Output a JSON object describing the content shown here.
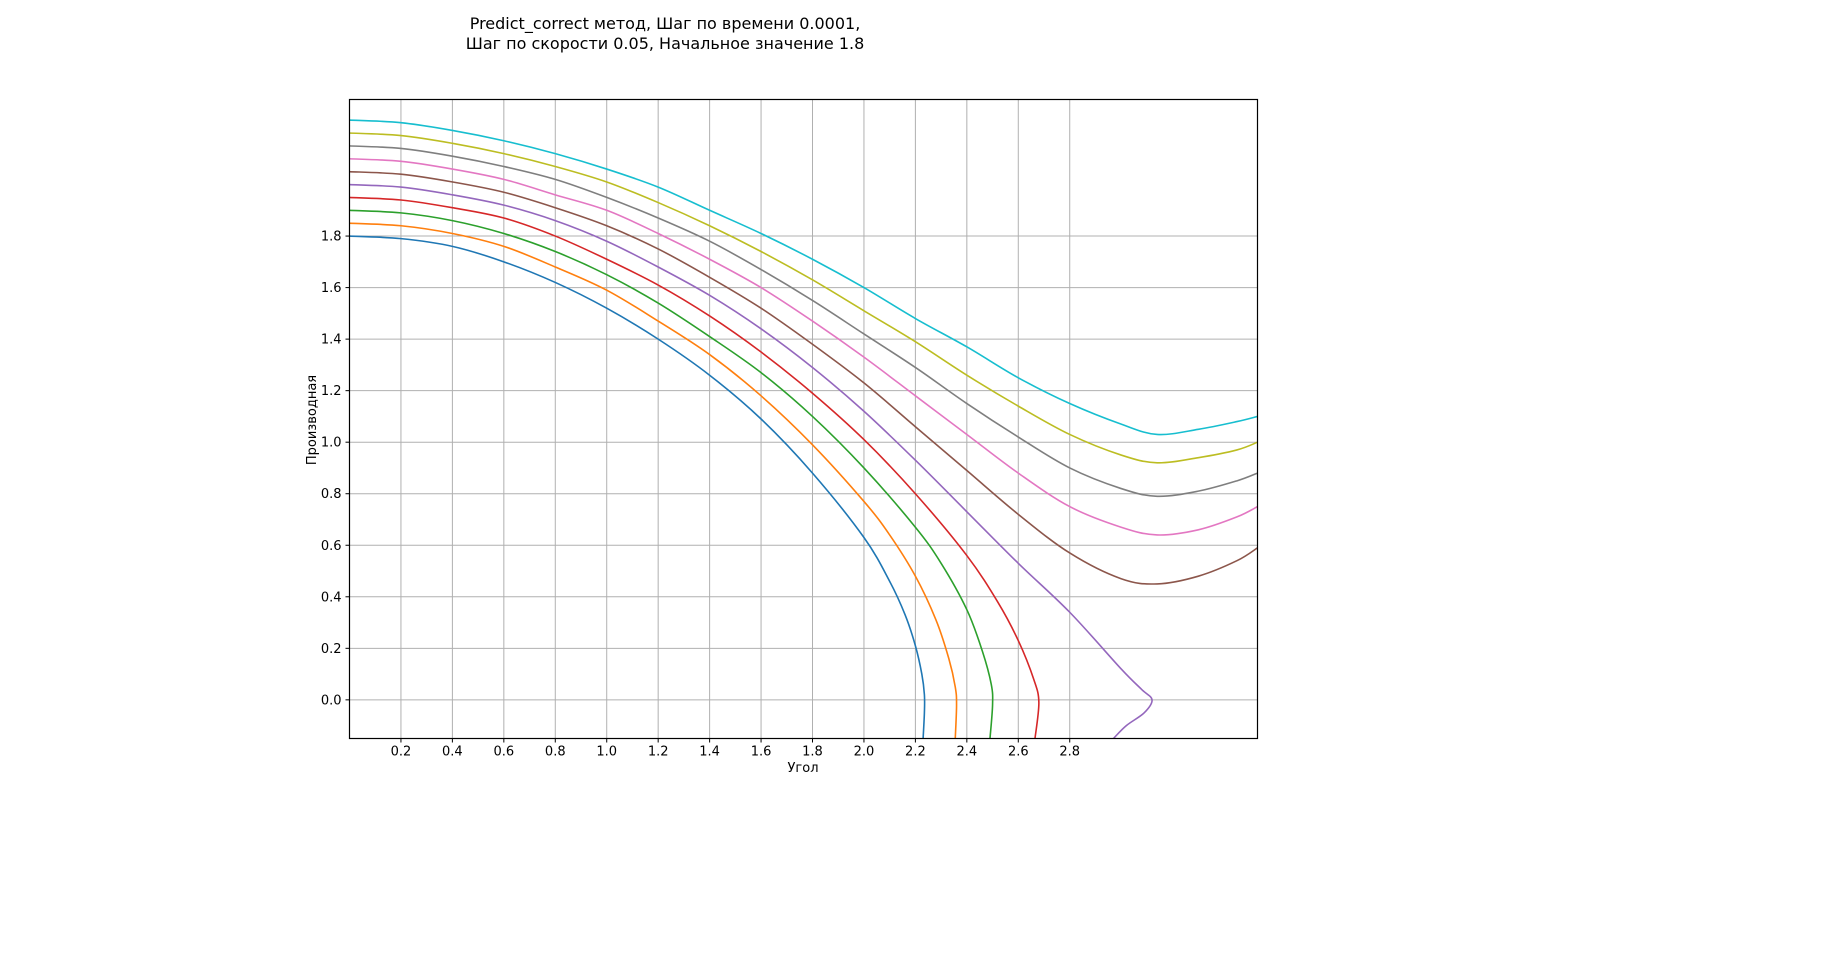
{
  "chart_data": {
    "type": "line",
    "title_line1": "Predict_correct метод, Шаг по времени 0.0001,",
    "title_line2": "Шаг по скорости 0.05, Начальное значение 1.8",
    "xlabel": "Угол",
    "ylabel": "Производная",
    "xlim": [
      0.0,
      3.53
    ],
    "ylim": [
      -0.15,
      2.33
    ],
    "grid": true,
    "x_ticks": [
      0.2,
      0.4,
      0.6,
      0.8,
      1.0,
      1.2,
      1.4,
      1.6,
      1.8,
      2.0,
      2.2,
      2.4,
      2.6,
      2.8
    ],
    "x_tick_labels": [
      "0.2",
      "0.4",
      "0.6",
      "0.8",
      "1.0",
      "1.2",
      "1.4",
      "1.6",
      "1.8",
      "2.0",
      "2.2",
      "2.4",
      "2.6",
      "2.8"
    ],
    "y_ticks": [
      0.0,
      0.2,
      0.4,
      0.6,
      0.8,
      1.0,
      1.2,
      1.4,
      1.6,
      1.8
    ],
    "y_tick_labels": [
      "0.0",
      "0.2",
      "0.4",
      "0.6",
      "0.8",
      "1.0",
      "1.2",
      "1.4",
      "1.6",
      "1.8"
    ],
    "series": [
      {
        "initial_value": 1.8,
        "color": "#1f77b4",
        "points": [
          [
            0.0,
            1.8
          ],
          [
            0.2,
            1.79
          ],
          [
            0.4,
            1.76
          ],
          [
            0.6,
            1.7
          ],
          [
            0.8,
            1.62
          ],
          [
            1.0,
            1.52
          ],
          [
            1.2,
            1.4
          ],
          [
            1.4,
            1.26
          ],
          [
            1.6,
            1.09
          ],
          [
            1.8,
            0.88
          ],
          [
            2.0,
            0.63
          ],
          [
            2.1,
            0.46
          ],
          [
            2.16,
            0.33
          ],
          [
            2.2,
            0.21
          ],
          [
            2.225,
            0.1
          ],
          [
            2.235,
            0.02
          ],
          [
            2.235,
            -0.05
          ],
          [
            2.23,
            -0.15
          ]
        ]
      },
      {
        "initial_value": 1.85,
        "color": "#ff7f0e",
        "points": [
          [
            0.0,
            1.85
          ],
          [
            0.2,
            1.84
          ],
          [
            0.4,
            1.81
          ],
          [
            0.6,
            1.76
          ],
          [
            0.8,
            1.68
          ],
          [
            1.0,
            1.59
          ],
          [
            1.2,
            1.47
          ],
          [
            1.4,
            1.34
          ],
          [
            1.6,
            1.18
          ],
          [
            1.8,
            0.99
          ],
          [
            2.0,
            0.77
          ],
          [
            2.1,
            0.64
          ],
          [
            2.2,
            0.48
          ],
          [
            2.28,
            0.31
          ],
          [
            2.33,
            0.16
          ],
          [
            2.355,
            0.05
          ],
          [
            2.36,
            -0.02
          ],
          [
            2.355,
            -0.15
          ]
        ]
      },
      {
        "initial_value": 1.9,
        "color": "#2ca02c",
        "points": [
          [
            0.0,
            1.9
          ],
          [
            0.2,
            1.89
          ],
          [
            0.4,
            1.86
          ],
          [
            0.6,
            1.81
          ],
          [
            0.8,
            1.74
          ],
          [
            1.0,
            1.65
          ],
          [
            1.2,
            1.54
          ],
          [
            1.4,
            1.41
          ],
          [
            1.6,
            1.27
          ],
          [
            1.8,
            1.1
          ],
          [
            2.0,
            0.9
          ],
          [
            2.2,
            0.67
          ],
          [
            2.3,
            0.53
          ],
          [
            2.4,
            0.35
          ],
          [
            2.46,
            0.19
          ],
          [
            2.495,
            0.06
          ],
          [
            2.5,
            -0.02
          ],
          [
            2.49,
            -0.15
          ]
        ]
      },
      {
        "initial_value": 1.95,
        "color": "#d62728",
        "points": [
          [
            0.0,
            1.95
          ],
          [
            0.2,
            1.94
          ],
          [
            0.4,
            1.91
          ],
          [
            0.6,
            1.87
          ],
          [
            0.8,
            1.8
          ],
          [
            1.0,
            1.71
          ],
          [
            1.2,
            1.61
          ],
          [
            1.4,
            1.49
          ],
          [
            1.6,
            1.35
          ],
          [
            1.8,
            1.19
          ],
          [
            2.0,
            1.01
          ],
          [
            2.2,
            0.8
          ],
          [
            2.4,
            0.56
          ],
          [
            2.52,
            0.38
          ],
          [
            2.6,
            0.23
          ],
          [
            2.66,
            0.08
          ],
          [
            2.68,
            -0.01
          ],
          [
            2.665,
            -0.15
          ]
        ]
      },
      {
        "initial_value": 2.0,
        "color": "#9467bd",
        "points": [
          [
            0.0,
            2.0
          ],
          [
            0.2,
            1.99
          ],
          [
            0.4,
            1.96
          ],
          [
            0.6,
            1.92
          ],
          [
            0.8,
            1.86
          ],
          [
            1.0,
            1.78
          ],
          [
            1.2,
            1.68
          ],
          [
            1.4,
            1.57
          ],
          [
            1.6,
            1.44
          ],
          [
            1.8,
            1.29
          ],
          [
            2.0,
            1.12
          ],
          [
            2.2,
            0.93
          ],
          [
            2.4,
            0.73
          ],
          [
            2.6,
            0.53
          ],
          [
            2.8,
            0.34
          ],
          [
            3.0,
            0.12
          ],
          [
            3.08,
            0.04
          ],
          [
            3.12,
            0.0
          ],
          [
            3.09,
            -0.05
          ],
          [
            3.02,
            -0.1
          ],
          [
            2.97,
            -0.15
          ]
        ]
      },
      {
        "initial_value": 2.05,
        "color": "#8c564b",
        "points": [
          [
            0.0,
            2.05
          ],
          [
            0.2,
            2.04
          ],
          [
            0.4,
            2.01
          ],
          [
            0.6,
            1.97
          ],
          [
            0.8,
            1.91
          ],
          [
            1.0,
            1.84
          ],
          [
            1.2,
            1.75
          ],
          [
            1.4,
            1.64
          ],
          [
            1.6,
            1.52
          ],
          [
            1.8,
            1.38
          ],
          [
            2.0,
            1.23
          ],
          [
            2.2,
            1.06
          ],
          [
            2.4,
            0.89
          ],
          [
            2.6,
            0.72
          ],
          [
            2.8,
            0.57
          ],
          [
            3.0,
            0.47
          ],
          [
            3.14,
            0.45
          ],
          [
            3.3,
            0.48
          ],
          [
            3.45,
            0.54
          ],
          [
            3.53,
            0.59
          ]
        ]
      },
      {
        "initial_value": 2.1,
        "color": "#e377c2",
        "points": [
          [
            0.0,
            2.1
          ],
          [
            0.2,
            2.09
          ],
          [
            0.4,
            2.06
          ],
          [
            0.6,
            2.02
          ],
          [
            0.8,
            1.96
          ],
          [
            1.0,
            1.9
          ],
          [
            1.2,
            1.81
          ],
          [
            1.4,
            1.71
          ],
          [
            1.6,
            1.6
          ],
          [
            1.8,
            1.47
          ],
          [
            2.0,
            1.33
          ],
          [
            2.2,
            1.18
          ],
          [
            2.4,
            1.03
          ],
          [
            2.6,
            0.88
          ],
          [
            2.8,
            0.75
          ],
          [
            3.0,
            0.67
          ],
          [
            3.14,
            0.64
          ],
          [
            3.3,
            0.66
          ],
          [
            3.45,
            0.71
          ],
          [
            3.53,
            0.75
          ]
        ]
      },
      {
        "initial_value": 2.15,
        "color": "#7f7f7f",
        "points": [
          [
            0.0,
            2.15
          ],
          [
            0.2,
            2.14
          ],
          [
            0.4,
            2.11
          ],
          [
            0.6,
            2.07
          ],
          [
            0.8,
            2.02
          ],
          [
            1.0,
            1.95
          ],
          [
            1.2,
            1.87
          ],
          [
            1.4,
            1.78
          ],
          [
            1.6,
            1.67
          ],
          [
            1.8,
            1.55
          ],
          [
            2.0,
            1.42
          ],
          [
            2.2,
            1.29
          ],
          [
            2.4,
            1.15
          ],
          [
            2.6,
            1.02
          ],
          [
            2.8,
            0.9
          ],
          [
            3.0,
            0.82
          ],
          [
            3.14,
            0.79
          ],
          [
            3.3,
            0.81
          ],
          [
            3.45,
            0.85
          ],
          [
            3.53,
            0.88
          ]
        ]
      },
      {
        "initial_value": 2.2,
        "color": "#bcbd22",
        "points": [
          [
            0.0,
            2.2
          ],
          [
            0.2,
            2.19
          ],
          [
            0.4,
            2.16
          ],
          [
            0.6,
            2.12
          ],
          [
            0.8,
            2.07
          ],
          [
            1.0,
            2.01
          ],
          [
            1.2,
            1.93
          ],
          [
            1.4,
            1.84
          ],
          [
            1.6,
            1.74
          ],
          [
            1.8,
            1.63
          ],
          [
            2.0,
            1.51
          ],
          [
            2.2,
            1.39
          ],
          [
            2.4,
            1.26
          ],
          [
            2.6,
            1.14
          ],
          [
            2.8,
            1.03
          ],
          [
            3.0,
            0.95
          ],
          [
            3.14,
            0.92
          ],
          [
            3.3,
            0.94
          ],
          [
            3.45,
            0.97
          ],
          [
            3.53,
            1.0
          ]
        ]
      },
      {
        "initial_value": 2.25,
        "color": "#17becf",
        "points": [
          [
            0.0,
            2.25
          ],
          [
            0.2,
            2.24
          ],
          [
            0.4,
            2.21
          ],
          [
            0.6,
            2.17
          ],
          [
            0.8,
            2.12
          ],
          [
            1.0,
            2.06
          ],
          [
            1.2,
            1.99
          ],
          [
            1.4,
            1.9
          ],
          [
            1.6,
            1.81
          ],
          [
            1.8,
            1.71
          ],
          [
            2.0,
            1.6
          ],
          [
            2.2,
            1.48
          ],
          [
            2.4,
            1.37
          ],
          [
            2.6,
            1.25
          ],
          [
            2.8,
            1.15
          ],
          [
            3.0,
            1.07
          ],
          [
            3.14,
            1.03
          ],
          [
            3.3,
            1.05
          ],
          [
            3.45,
            1.08
          ],
          [
            3.53,
            1.1
          ]
        ]
      }
    ]
  }
}
